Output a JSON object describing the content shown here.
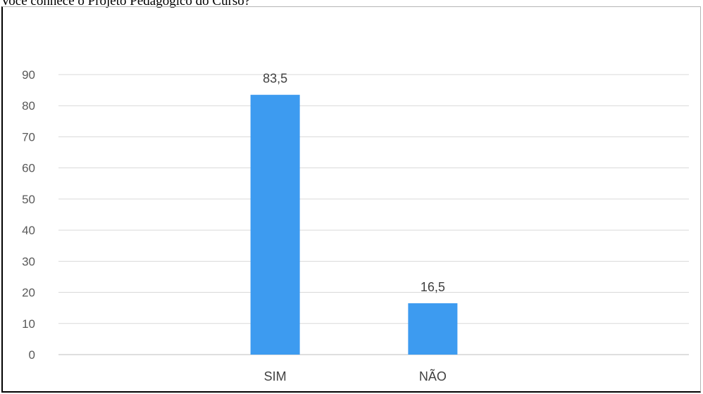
{
  "chart_data": {
    "type": "bar",
    "title": "Você conhece o Projeto Pedagógico do Curso?",
    "xlabel": "",
    "ylabel": "",
    "categories": [
      "SIM",
      "NÃO"
    ],
    "values": [
      83.5,
      16.5
    ],
    "data_labels": [
      "83,5",
      "16,5"
    ],
    "ylim": [
      0,
      90
    ],
    "yticks": [
      "0",
      "10",
      "20",
      "30",
      "40",
      "50",
      "60",
      "70",
      "80",
      "90"
    ],
    "grid": true,
    "legend": "none",
    "bar_color": "#3d9bf0"
  }
}
